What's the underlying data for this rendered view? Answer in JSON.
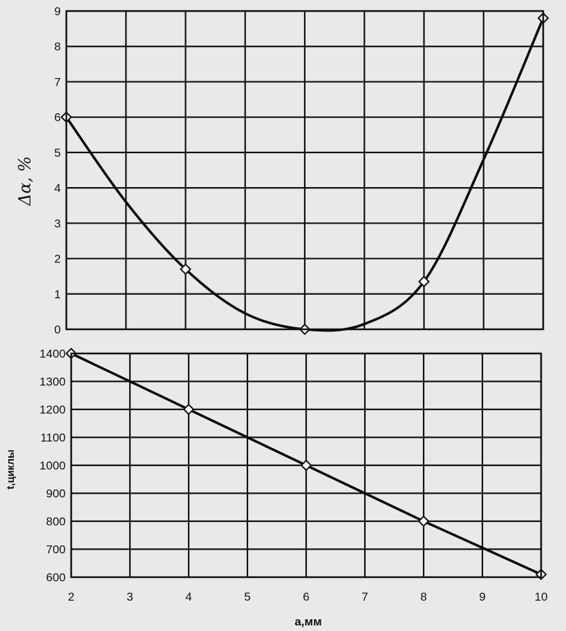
{
  "chart_data": [
    {
      "type": "line",
      "ylabel": "Δα, %",
      "xlabel": "",
      "xlim": [
        2,
        10
      ],
      "ylim": [
        0,
        9
      ],
      "xticks": [
        2,
        3,
        4,
        5,
        6,
        7,
        8,
        9,
        10
      ],
      "yticks": [
        0,
        1,
        2,
        3,
        4,
        5,
        6,
        7,
        8,
        9
      ],
      "grid": true,
      "series": [
        {
          "curve": [
            [
              2,
              6.0
            ],
            [
              3,
              3.6
            ],
            [
              4,
              1.7
            ],
            [
              5,
              0.45
            ],
            [
              6,
              0.0
            ],
            [
              7,
              0.15
            ],
            [
              8,
              1.35
            ],
            [
              9,
              4.8
            ],
            [
              10,
              8.8
            ]
          ],
          "markers": [
            [
              2,
              6.0
            ],
            [
              4,
              1.7
            ],
            [
              6,
              0.0
            ],
            [
              8,
              1.35
            ],
            [
              10,
              8.8
            ]
          ]
        }
      ]
    },
    {
      "type": "line",
      "ylabel": "t,циклы",
      "xlabel": "a,мм",
      "xlim": [
        2,
        10
      ],
      "ylim": [
        600,
        1400
      ],
      "xticks": [
        2,
        3,
        4,
        5,
        6,
        7,
        8,
        9,
        10
      ],
      "yticks": [
        600,
        700,
        800,
        900,
        1000,
        1100,
        1200,
        1300,
        1400
      ],
      "grid": true,
      "series": [
        {
          "curve": [
            [
              2,
              1400
            ],
            [
              4,
              1200
            ],
            [
              6,
              1000
            ],
            [
              8,
              800
            ],
            [
              10,
              610
            ]
          ],
          "markers": [
            [
              2,
              1400
            ],
            [
              4,
              1200
            ],
            [
              6,
              1000
            ],
            [
              8,
              800
            ],
            [
              10,
              610
            ]
          ]
        }
      ]
    }
  ]
}
